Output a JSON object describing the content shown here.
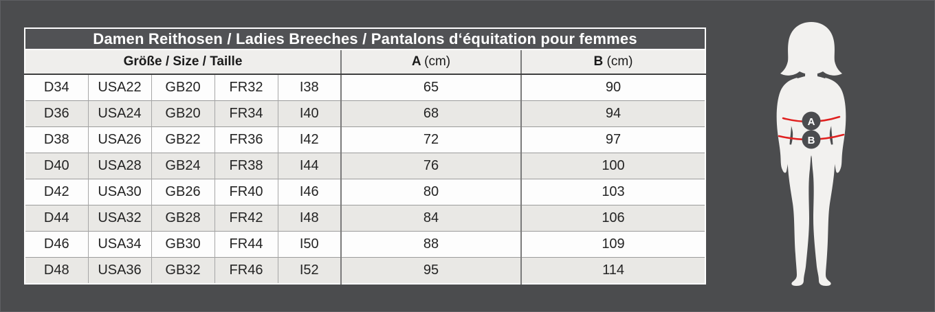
{
  "chart_data": {
    "type": "table",
    "title": "Damen Reithosen / Ladies Breeches / Pantalons d‘équitation pour femmes",
    "column_groups": [
      "Größe / Size / Taille",
      "A (cm)",
      "B (cm)"
    ],
    "size_systems": [
      "D",
      "USA",
      "GB",
      "FR",
      "I"
    ],
    "columns": [
      "Größe D",
      "Größe USA",
      "Größe GB",
      "Größe FR",
      "Größe I",
      "A (cm)",
      "B (cm)"
    ],
    "rows": [
      [
        "D34",
        "USA22",
        "GB20",
        "FR32",
        "I38",
        "65",
        "90"
      ],
      [
        "D36",
        "USA24",
        "GB20",
        "FR34",
        "I40",
        "68",
        "94"
      ],
      [
        "D38",
        "USA26",
        "GB22",
        "FR36",
        "I42",
        "72",
        "97"
      ],
      [
        "D40",
        "USA28",
        "GB24",
        "FR38",
        "I44",
        "76",
        "100"
      ],
      [
        "D42",
        "USA30",
        "GB26",
        "FR40",
        "I46",
        "80",
        "103"
      ],
      [
        "D44",
        "USA32",
        "GB28",
        "FR42",
        "I48",
        "84",
        "106"
      ],
      [
        "D46",
        "USA34",
        "GB30",
        "FR44",
        "I50",
        "88",
        "109"
      ],
      [
        "D48",
        "USA36",
        "GB32",
        "FR46",
        "I52",
        "95",
        "114"
      ]
    ]
  },
  "header": {
    "size_label": "Größe / Size / Taille",
    "a_label": "A",
    "a_unit": "(cm)",
    "b_label": "B",
    "b_unit": "(cm)"
  },
  "figure": {
    "marker_a": "A",
    "marker_b": "B",
    "description": "female silhouette with waist (A) and hip (B) measurement lines"
  },
  "colors": {
    "background": "#4b4c4e",
    "table_outer_border": "#ffffff",
    "header_bg": "#efeeec",
    "row_white": "#fdfdfd",
    "row_alt": "#e9e8e5",
    "measure_line_red": "#e0201f",
    "badge_gray": "#4b4c4f",
    "body_silhouette": "#f2f1ef"
  }
}
